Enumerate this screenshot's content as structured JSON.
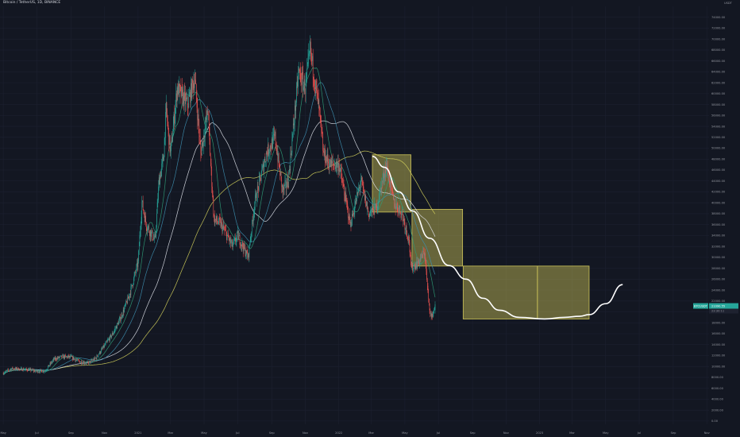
{
  "header": {
    "title": "Bitcoin / TetherUS, 1D, BINANCE"
  },
  "chart_data": {
    "type": "candlestick",
    "title": "Bitcoin / TetherUS, 1D, BINANCE",
    "yaxis": {
      "currency": "USDT",
      "ticks": [
        0,
        2000,
        4000,
        6000,
        8000,
        10000,
        12000,
        14000,
        16000,
        18000,
        20000,
        22000,
        24000,
        26000,
        28000,
        30000,
        32000,
        34000,
        36000,
        38000,
        40000,
        42000,
        44000,
        46000,
        48000,
        50000,
        52000,
        54000,
        56000,
        58000,
        60000,
        62000,
        64000,
        66000,
        68000,
        70000,
        72000,
        74000
      ],
      "tick_labels": [
        "0.00",
        "2000.00",
        "4000.00",
        "6000.00",
        "8000.00",
        "10000.00",
        "12000.00",
        "14000.00",
        "16000.00",
        "18000.00",
        "20000.00",
        "22000.00",
        "24000.00",
        "26000.00",
        "28000.00",
        "30000.00",
        "32000.00",
        "34000.00",
        "36000.00",
        "38000.00",
        "40000.00",
        "42000.00",
        "44000.00",
        "46000.00",
        "48000.00",
        "50000.00",
        "52000.00",
        "54000.00",
        "56000.00",
        "58000.00",
        "60000.00",
        "62000.00",
        "64000.00",
        "66000.00",
        "68000.00",
        "70000.00",
        "72000.00",
        "74000.00"
      ],
      "range": [
        -600,
        76000
      ]
    },
    "xaxis": {
      "range": [
        "2020-04-25",
        "2023-11-05"
      ],
      "ticks": [
        "2020-05-01",
        "2020-07-01",
        "2020-09-01",
        "2020-11-01",
        "2021-01-01",
        "2021-03-01",
        "2021-05-01",
        "2021-07-01",
        "2021-09-01",
        "2021-11-01",
        "2022-01-01",
        "2022-03-01",
        "2022-05-01",
        "2022-07-01",
        "2022-09-01",
        "2022-11-01",
        "2023-01-01",
        "2023-03-01",
        "2023-05-01",
        "2023-07-01",
        "2023-09-01",
        "2023-11-01"
      ],
      "tick_labels": [
        "May",
        "Jul",
        "Sep",
        "Nov",
        "2021",
        "Mar",
        "May",
        "Jul",
        "Sep",
        "Nov",
        "2022",
        "Mar",
        "May",
        "Jul",
        "Sep",
        "Nov",
        "2023",
        "Mar",
        "May",
        "Jul",
        "Sep",
        "Nov"
      ]
    },
    "price": {
      "date": [
        "2020-05-01",
        "2020-05-16",
        "2020-06-01",
        "2020-06-16",
        "2020-07-01",
        "2020-07-16",
        "2020-08-01",
        "2020-08-16",
        "2020-09-01",
        "2020-09-16",
        "2020-10-01",
        "2020-10-16",
        "2020-11-01",
        "2020-11-16",
        "2020-12-01",
        "2020-12-16",
        "2021-01-01",
        "2021-01-08",
        "2021-01-16",
        "2021-02-01",
        "2021-02-08",
        "2021-02-16",
        "2021-02-21",
        "2021-03-01",
        "2021-03-13",
        "2021-04-01",
        "2021-04-14",
        "2021-04-25",
        "2021-05-08",
        "2021-05-12",
        "2021-05-19",
        "2021-06-01",
        "2021-06-22",
        "2021-07-01",
        "2021-07-20",
        "2021-08-01",
        "2021-08-22",
        "2021-09-07",
        "2021-09-21",
        "2021-10-01",
        "2021-10-20",
        "2021-11-01",
        "2021-11-10",
        "2021-11-26",
        "2021-12-04",
        "2021-12-16",
        "2022-01-01",
        "2022-01-22",
        "2022-02-10",
        "2022-02-24",
        "2022-03-10",
        "2022-03-28",
        "2022-04-11",
        "2022-04-26",
        "2022-05-09",
        "2022-05-12",
        "2022-05-25",
        "2022-06-06",
        "2022-06-13",
        "2022-06-18",
        "2022-06-25"
      ],
      "close": [
        8800,
        9600,
        9500,
        9400,
        9100,
        9200,
        11300,
        11800,
        11700,
        10900,
        10600,
        11500,
        13800,
        16000,
        19000,
        23000,
        29000,
        40000,
        36000,
        33000,
        44000,
        48000,
        57000,
        49000,
        61000,
        58000,
        63000,
        49000,
        57000,
        49000,
        37000,
        36000,
        32000,
        34000,
        30000,
        40000,
        49000,
        52000,
        42000,
        44000,
        64000,
        61000,
        68000,
        57000,
        49000,
        47000,
        47000,
        36000,
        44000,
        38000,
        39000,
        47000,
        40000,
        38000,
        33000,
        28000,
        29000,
        31000,
        22000,
        18900,
        21000
      ],
      "high": [
        10000,
        10000,
        10400,
        10000,
        9500,
        9500,
        12000,
        12400,
        12100,
        11100,
        10900,
        11800,
        14300,
        18500,
        19900,
        24300,
        31500,
        41900,
        38900,
        34800,
        47000,
        52000,
        58300,
        52000,
        61700,
        59500,
        64800,
        55000,
        59500,
        58000,
        43500,
        37800,
        36500,
        36000,
        31500,
        42400,
        50500,
        52900,
        44000,
        48500,
        66900,
        64000,
        69000,
        59300,
        53900,
        48500,
        48000,
        40000,
        45500,
        39800,
        42500,
        48200,
        42400,
        40800,
        35500,
        31000,
        30300,
        31800,
        27000,
        20000,
        21900
      ],
      "low": [
        8300,
        9000,
        9200,
        9000,
        8900,
        9000,
        10700,
        11200,
        10000,
        10500,
        10300,
        11200,
        13300,
        15000,
        18000,
        21500,
        28000,
        30000,
        33000,
        30200,
        38000,
        46000,
        47000,
        45000,
        54000,
        56000,
        59000,
        47000,
        53000,
        46000,
        30000,
        31000,
        28800,
        32000,
        29300,
        38000,
        47000,
        43000,
        40000,
        43000,
        60000,
        58000,
        63000,
        53500,
        46000,
        46500,
        40700,
        34000,
        41000,
        34300,
        37500,
        44300,
        39200,
        37000,
        30000,
        26700,
        28000,
        29000,
        20800,
        17600,
        19700
      ],
      "color": "up-green / down-red (per open-close)"
    },
    "moving_averages": [
      {
        "color": "#d6d45c",
        "period_hint": "slow (yellow)"
      },
      {
        "color": "#e0e3eb",
        "period_hint": "200 (white)"
      },
      {
        "color": "#3e8fb0",
        "period_hint": "medium (blue)"
      },
      {
        "color": "#2f9c77",
        "period_hint": "fast (teal)"
      }
    ],
    "projection_boxes": [
      {
        "x0": "2022-03-03",
        "x1": "2022-05-12",
        "y0": 38300,
        "y1": 48800
      },
      {
        "x0": "2022-05-14",
        "x1": "2022-08-14",
        "y0": 28400,
        "y1": 38800
      },
      {
        "x0": "2022-08-15",
        "x1": "2022-12-28",
        "y0": 18700,
        "y1": 28400
      },
      {
        "x0": "2022-12-28",
        "x1": "2023-04-01",
        "y0": 18700,
        "y1": 28400
      }
    ],
    "projection_path": {
      "color": "#ffffff",
      "points": [
        [
          "2022-03-03",
          48500
        ],
        [
          "2022-03-25",
          46500
        ],
        [
          "2022-04-20",
          42000
        ],
        [
          "2022-05-15",
          38500
        ],
        [
          "2022-06-15",
          33500
        ],
        [
          "2022-07-20",
          28500
        ],
        [
          "2022-08-20",
          26000
        ],
        [
          "2022-09-20",
          22500
        ],
        [
          "2022-10-20",
          20300
        ],
        [
          "2022-11-25",
          19000
        ],
        [
          "2023-01-10",
          18700
        ],
        [
          "2023-02-15",
          19000
        ],
        [
          "2023-03-15",
          19200
        ],
        [
          "2023-04-01",
          19500
        ],
        [
          "2023-05-01",
          21500
        ],
        [
          "2023-06-01",
          25000
        ]
      ]
    },
    "last_price": {
      "value": "21090.55",
      "label_left": "BTCUSDT",
      "label_right": "21090.55"
    },
    "price_tag_extra": "23:30:11",
    "grid": true,
    "legend": "none"
  }
}
